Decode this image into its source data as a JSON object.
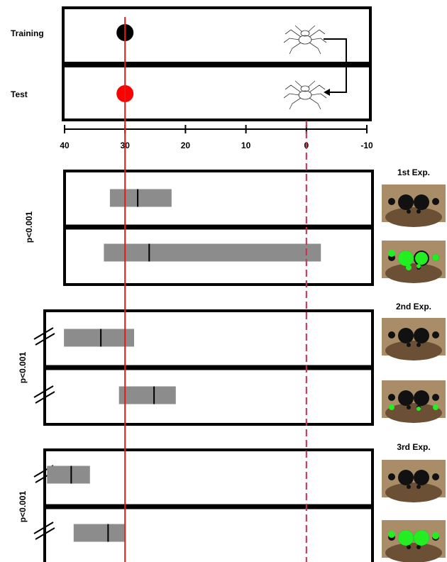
{
  "chart_data": {
    "type": "interval",
    "xlim": [
      40,
      -10
    ],
    "xticks": [
      40,
      30,
      20,
      10,
      0,
      -10
    ],
    "reference_lines": [
      {
        "value": 30,
        "color": "#e41a1a",
        "dashed": false
      },
      {
        "value": 0,
        "color": "#d22a4a",
        "dashed": true
      }
    ],
    "conditions": [
      {
        "name": "Training",
        "marker": 30,
        "color": "#000000"
      },
      {
        "name": "Test",
        "marker": 30,
        "color": "#ff0000"
      }
    ],
    "bar_color": "#8c8c8c",
    "experiments": [
      {
        "name": "1st Exp.",
        "p_label": "p<0.001",
        "rows": [
          {
            "low": 22.3,
            "median": 27.9,
            "high": 32.5
          },
          {
            "low": -2.4,
            "median": 26,
            "high": 33.5
          }
        ]
      },
      {
        "name": "2nd Exp.",
        "p_label": "p<0.001",
        "rows": [
          {
            "low": 28.5,
            "median": 34,
            "high": 40.1
          },
          {
            "low": 21.6,
            "median": 25.2,
            "high": 31
          }
        ]
      },
      {
        "name": "3rd Exp.",
        "p_label": "p<0.001",
        "rows": [
          {
            "low": 35.8,
            "median": 38.9,
            "high": 42.9
          },
          {
            "low": 30.1,
            "median": 32.8,
            "high": 38.5
          }
        ]
      }
    ]
  }
}
